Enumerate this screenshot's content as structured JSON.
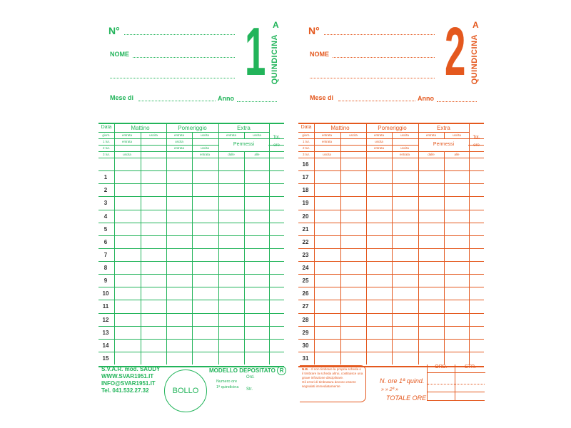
{
  "colors": {
    "card1": "#22b45a",
    "card2": "#e4581e"
  },
  "cards": [
    {
      "number": "1",
      "letter": "A",
      "period": "QUINDICINA",
      "no_label": "N°",
      "name_label": "NOME",
      "month_label": "Mese di",
      "year_label": "Anno",
      "rows": [
        "",
        "1",
        "2",
        "3",
        "4",
        "5",
        "6",
        "7",
        "8",
        "9",
        "10",
        "11",
        "12",
        "13",
        "14",
        "15"
      ]
    },
    {
      "number": "2",
      "letter": "A",
      "period": "QUINDICINA",
      "no_label": "N°",
      "name_label": "NOME",
      "month_label": "Mese di",
      "year_label": "Anno",
      "rows": [
        "16",
        "17",
        "18",
        "19",
        "20",
        "21",
        "22",
        "23",
        "24",
        "25",
        "26",
        "27",
        "28",
        "29",
        "30",
        "31"
      ]
    }
  ],
  "table": {
    "data": "Data",
    "mattino": "Mattino",
    "pomeriggio": "Pomeriggio",
    "extra": "Extra",
    "tot": "Tot.",
    "ore": "ore",
    "permessi": "Permessi",
    "giorn": "giorn.",
    "tur1": "1 tur.",
    "tur2": "2 tur.",
    "tur3": "3 tur.",
    "entrata": "entrata",
    "uscita": "uscita",
    "dalle": "dalle",
    "alle": "alle"
  },
  "footer1": {
    "line1": "S.V.A.R. mod. SAODY",
    "line2": "WWW.SVAR1951.IT",
    "line3": "INFO@SVAR1951.IT",
    "line4": "Tel.   041.532.27.32",
    "bollo": "BOLLO",
    "modello": "MODELLO DEPOSITATO",
    "registered": "R",
    "numero_ore": "Numero ore",
    "quindicina": "1ª quindicina",
    "ord": "Ord.",
    "str": "Str."
  },
  "footer2": {
    "nb_title": "N.B.",
    "nb_text": "- Il non timbrare la propria scheda o il timbrare la scheda altrui, costituisce una grave infrazione disciplinare.",
    "nb_text2": "Gli errori di timbratura devono essere segnalati immediatamente",
    "hours1": "N. ore 1ª quind.",
    "hours2": "»   »   2ª    »",
    "total": "TOTALE ORE",
    "ord": "ORD.",
    "str": "STR."
  }
}
